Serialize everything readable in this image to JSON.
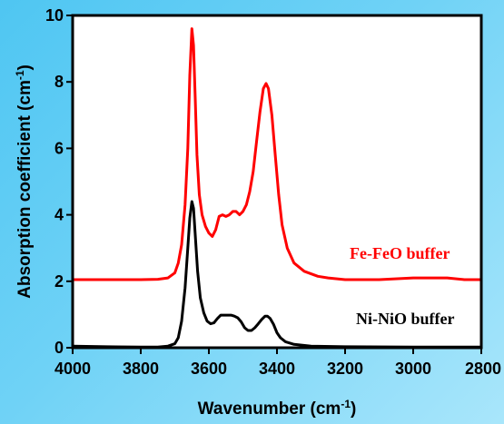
{
  "chart_data": {
    "type": "line",
    "xlabel": "Wavenumber (cm",
    "xlabel_sup": "-1",
    "xlabel_close": ")",
    "ylabel": "Absorption coefficient (cm",
    "ylabel_sup": "-1",
    "ylabel_close": ")",
    "xlim": [
      4000,
      2800
    ],
    "ylim": [
      0,
      10
    ],
    "x_ticks": [
      "4000",
      "3800",
      "3600",
      "3400",
      "3200",
      "3000",
      "2800"
    ],
    "y_ticks": [
      "0",
      "2",
      "4",
      "6",
      "8",
      "10"
    ],
    "grid": false,
    "series": [
      {
        "name": "Fe-FeO buffer",
        "color": "#ff0000",
        "points": [
          [
            4000,
            2.05
          ],
          [
            3900,
            2.05
          ],
          [
            3800,
            2.05
          ],
          [
            3750,
            2.06
          ],
          [
            3720,
            2.1
          ],
          [
            3700,
            2.25
          ],
          [
            3690,
            2.55
          ],
          [
            3680,
            3.1
          ],
          [
            3670,
            4.3
          ],
          [
            3662,
            6.0
          ],
          [
            3656,
            8.2
          ],
          [
            3650,
            9.6
          ],
          [
            3645,
            9.1
          ],
          [
            3640,
            7.5
          ],
          [
            3635,
            5.8
          ],
          [
            3628,
            4.6
          ],
          [
            3620,
            4.0
          ],
          [
            3610,
            3.65
          ],
          [
            3600,
            3.45
          ],
          [
            3590,
            3.35
          ],
          [
            3580,
            3.55
          ],
          [
            3570,
            3.95
          ],
          [
            3560,
            4.0
          ],
          [
            3550,
            3.95
          ],
          [
            3540,
            4.0
          ],
          [
            3530,
            4.1
          ],
          [
            3520,
            4.1
          ],
          [
            3510,
            4.0
          ],
          [
            3500,
            4.1
          ],
          [
            3490,
            4.3
          ],
          [
            3480,
            4.7
          ],
          [
            3470,
            5.3
          ],
          [
            3460,
            6.2
          ],
          [
            3450,
            7.1
          ],
          [
            3440,
            7.8
          ],
          [
            3432,
            7.95
          ],
          [
            3425,
            7.8
          ],
          [
            3415,
            7.0
          ],
          [
            3405,
            5.8
          ],
          [
            3395,
            4.6
          ],
          [
            3385,
            3.7
          ],
          [
            3370,
            3.0
          ],
          [
            3350,
            2.55
          ],
          [
            3320,
            2.3
          ],
          [
            3280,
            2.15
          ],
          [
            3250,
            2.1
          ],
          [
            3200,
            2.05
          ],
          [
            3100,
            2.05
          ],
          [
            3000,
            2.1
          ],
          [
            2900,
            2.1
          ],
          [
            2850,
            2.05
          ],
          [
            2800,
            2.05
          ]
        ]
      },
      {
        "name": "Ni-NiO buffer",
        "color": "#000000",
        "points": [
          [
            4000,
            0.05
          ],
          [
            3900,
            0.03
          ],
          [
            3800,
            0.02
          ],
          [
            3750,
            0.02
          ],
          [
            3720,
            0.05
          ],
          [
            3700,
            0.12
          ],
          [
            3690,
            0.3
          ],
          [
            3680,
            0.8
          ],
          [
            3670,
            1.8
          ],
          [
            3662,
            3.0
          ],
          [
            3656,
            3.9
          ],
          [
            3650,
            4.4
          ],
          [
            3645,
            4.2
          ],
          [
            3640,
            3.4
          ],
          [
            3633,
            2.3
          ],
          [
            3625,
            1.5
          ],
          [
            3615,
            1.05
          ],
          [
            3605,
            0.8
          ],
          [
            3595,
            0.72
          ],
          [
            3585,
            0.75
          ],
          [
            3575,
            0.88
          ],
          [
            3565,
            0.98
          ],
          [
            3555,
            0.98
          ],
          [
            3545,
            0.98
          ],
          [
            3535,
            0.98
          ],
          [
            3525,
            0.95
          ],
          [
            3515,
            0.9
          ],
          [
            3505,
            0.78
          ],
          [
            3495,
            0.6
          ],
          [
            3485,
            0.52
          ],
          [
            3475,
            0.52
          ],
          [
            3465,
            0.6
          ],
          [
            3455,
            0.72
          ],
          [
            3445,
            0.85
          ],
          [
            3435,
            0.95
          ],
          [
            3428,
            0.95
          ],
          [
            3420,
            0.88
          ],
          [
            3410,
            0.7
          ],
          [
            3400,
            0.45
          ],
          [
            3390,
            0.3
          ],
          [
            3375,
            0.18
          ],
          [
            3350,
            0.1
          ],
          [
            3300,
            0.05
          ],
          [
            3200,
            0.03
          ],
          [
            3000,
            0.02
          ],
          [
            2800,
            0.02
          ]
        ]
      }
    ]
  },
  "legend": [
    {
      "label": "Fe-FeO buffer",
      "color": "#ff0000"
    },
    {
      "label": "Ni-NiO buffer",
      "color": "#000000"
    }
  ]
}
